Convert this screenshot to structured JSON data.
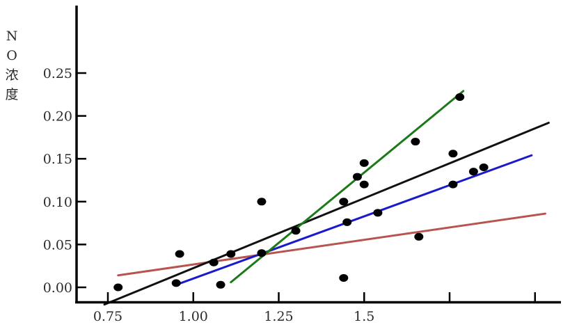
{
  "chart_data": {
    "type": "scatter",
    "title": "",
    "xlabel": "",
    "ylabel_chars": [
      "N",
      "O",
      "浓",
      "度"
    ],
    "xlim": [
      0.75,
      2.0
    ],
    "ylim": [
      0.0,
      0.25
    ],
    "x_ticks": [
      0.75,
      1.0,
      1.25,
      1.5,
      1.75,
      2.0
    ],
    "x_tick_labels": [
      "0.75",
      "1.00",
      "1.25",
      "1.5"
    ],
    "y_ticks": [
      0.0,
      0.05,
      0.1,
      0.15,
      0.2,
      0.25
    ],
    "y_tick_labels": [
      "0.00",
      "0.05",
      "0.10",
      "0.15",
      "0.20",
      "0.25"
    ],
    "grid": false,
    "points": [
      {
        "x": 0.78,
        "y": 0.0
      },
      {
        "x": 0.95,
        "y": 0.005
      },
      {
        "x": 0.96,
        "y": 0.039
      },
      {
        "x": 1.06,
        "y": 0.029
      },
      {
        "x": 1.08,
        "y": 0.003
      },
      {
        "x": 1.11,
        "y": 0.039
      },
      {
        "x": 1.2,
        "y": 0.1
      },
      {
        "x": 1.2,
        "y": 0.04
      },
      {
        "x": 1.3,
        "y": 0.066
      },
      {
        "x": 1.44,
        "y": 0.1
      },
      {
        "x": 1.44,
        "y": 0.011
      },
      {
        "x": 1.45,
        "y": 0.076
      },
      {
        "x": 1.48,
        "y": 0.129
      },
      {
        "x": 1.5,
        "y": 0.145
      },
      {
        "x": 1.5,
        "y": 0.12
      },
      {
        "x": 1.54,
        "y": 0.087
      },
      {
        "x": 1.65,
        "y": 0.17
      },
      {
        "x": 1.66,
        "y": 0.059
      },
      {
        "x": 1.76,
        "y": 0.156
      },
      {
        "x": 1.76,
        "y": 0.12
      },
      {
        "x": 1.78,
        "y": 0.222
      },
      {
        "x": 1.82,
        "y": 0.135
      },
      {
        "x": 1.85,
        "y": 0.14
      }
    ],
    "lines": [
      {
        "color": "#b85450",
        "x1": 0.78,
        "y1": 0.014,
        "x2": 2.03,
        "y2": 0.086
      },
      {
        "color": "#111111",
        "x1": 0.74,
        "y1": -0.02,
        "x2": 2.04,
        "y2": 0.192
      },
      {
        "color": "#1a1acc",
        "x1": 0.95,
        "y1": 0.003,
        "x2": 1.99,
        "y2": 0.154
      },
      {
        "color": "#1a7a1a",
        "x1": 1.11,
        "y1": 0.006,
        "x2": 1.79,
        "y2": 0.229
      }
    ]
  }
}
